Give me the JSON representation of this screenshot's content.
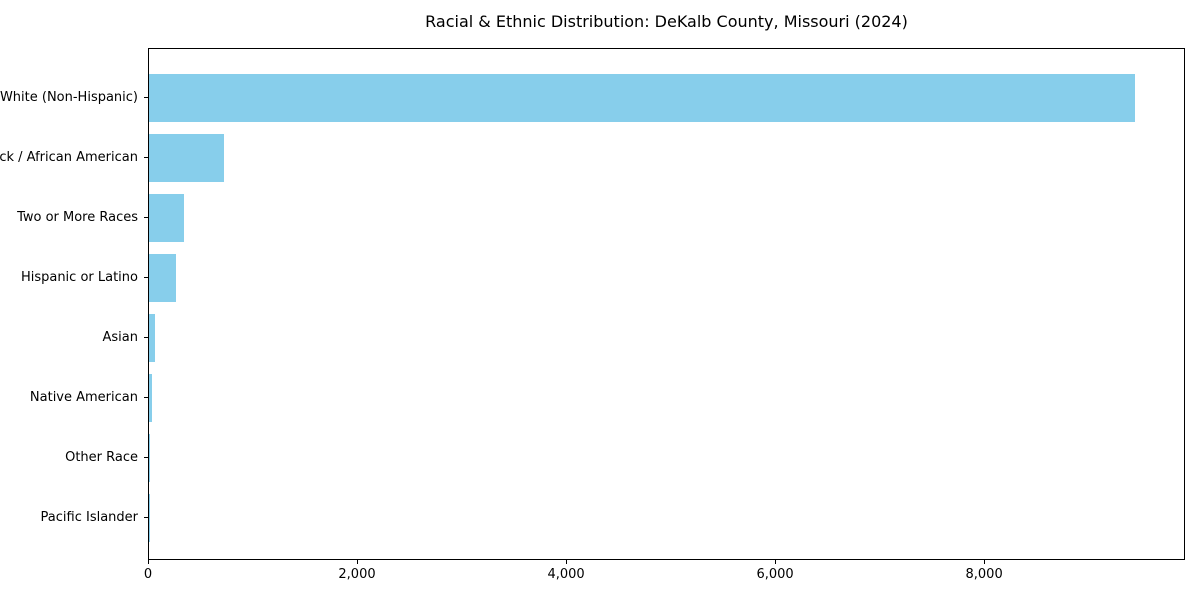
{
  "chart_data": {
    "type": "bar",
    "orientation": "horizontal",
    "title": "Racial & Ethnic Distribution: DeKalb County, Missouri (2024)",
    "categories": [
      "White (Non-Hispanic)",
      "Black / African American",
      "Two or More Races",
      "Hispanic or Latino",
      "Asian",
      "Native American",
      "Other Race",
      "Pacific Islander"
    ],
    "values": [
      9450,
      715,
      335,
      260,
      62,
      28,
      10,
      2
    ],
    "xlabel": "",
    "ylabel": "",
    "xlim": [
      0,
      9922
    ],
    "x_ticks": [
      0,
      2000,
      4000,
      6000,
      8000
    ],
    "x_tick_labels": [
      "0",
      "2,000",
      "4,000",
      "6,000",
      "8,000"
    ],
    "bar_color": "#87CEEB",
    "spine_color": "#000000",
    "background_color": "#ffffff",
    "grid": false,
    "legend": "none"
  }
}
